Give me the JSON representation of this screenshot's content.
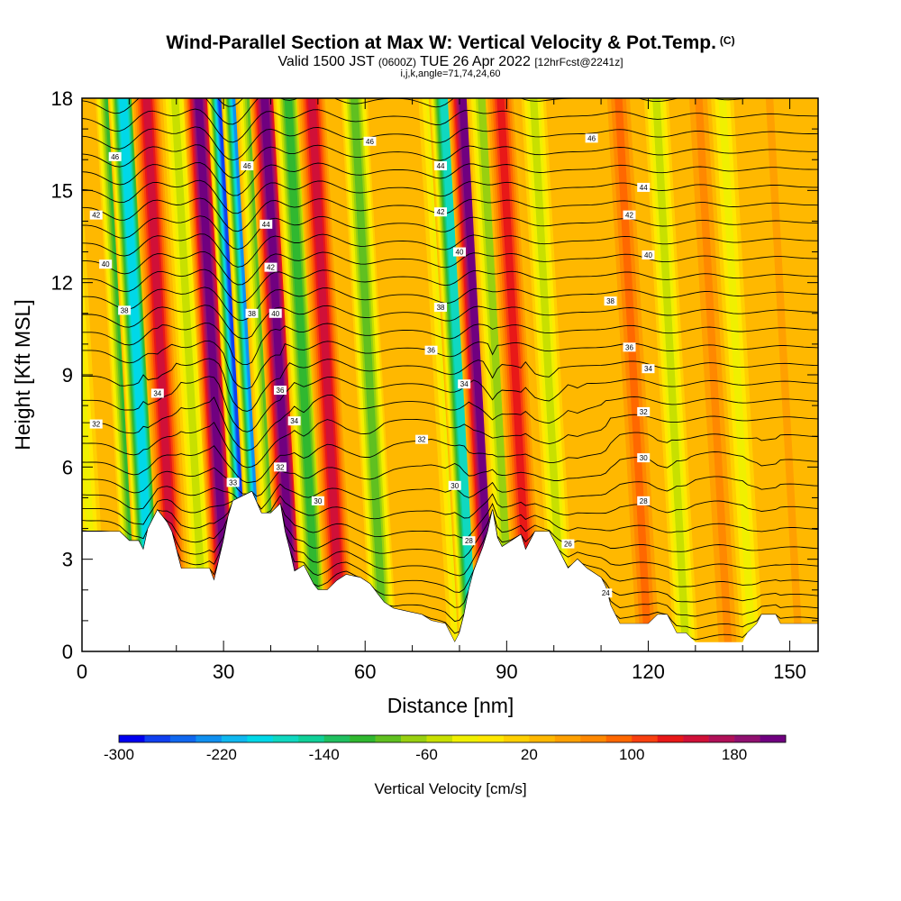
{
  "header": {
    "title": "Wind-Parallel Section at Max W: Vertical Velocity & Pot.Temp.",
    "copyright": "(C)",
    "valid_prefix": "Valid 1500 JST",
    "valid_utc": "(0600Z)",
    "valid_date": "TUE 26 Apr 2022",
    "forecast": "[12hrFcst@2241z]",
    "indices": "i,j,k,angle=71,74,24,60"
  },
  "chart_data": {
    "type": "heatmap",
    "xlabel": "Distance [nm]",
    "ylabel": "Height [Kft MSL]",
    "xlim": [
      0,
      156
    ],
    "ylim": [
      0,
      18
    ],
    "x_ticks": [
      0,
      30,
      60,
      90,
      120,
      150
    ],
    "y_ticks": [
      0,
      3,
      6,
      9,
      12,
      15,
      18
    ],
    "colorbar": {
      "label": "Vertical Velocity [cm/s]",
      "min": -300,
      "max": 220,
      "step": 20,
      "tick_labels": [
        -300,
        -220,
        -140,
        -60,
        20,
        100,
        180
      ],
      "colors": [
        "#0000f0",
        "#1040f0",
        "#1068f0",
        "#1090f0",
        "#10b8f0",
        "#00d8e8",
        "#10d8c0",
        "#10d098",
        "#20c060",
        "#30b830",
        "#60c020",
        "#98d010",
        "#c8e000",
        "#f0f000",
        "#ffe800",
        "#ffd000",
        "#ffb800",
        "#ffa000",
        "#ff8800",
        "#ff6800",
        "#f84010",
        "#e81818",
        "#d01038",
        "#b01058",
        "#901070",
        "#700080"
      ]
    },
    "vertical_velocity_bands": [
      {
        "x": 3,
        "w": -40
      },
      {
        "x": 12,
        "w": -120
      },
      {
        "x": 15,
        "w": -200
      },
      {
        "x": 20,
        "w": 140
      },
      {
        "x": 26,
        "w": -60
      },
      {
        "x": 31,
        "w": 200
      },
      {
        "x": 36,
        "w": -280
      },
      {
        "x": 39,
        "w": -240
      },
      {
        "x": 42,
        "w": -100
      },
      {
        "x": 45,
        "w": 200
      },
      {
        "x": 50,
        "w": -120
      },
      {
        "x": 55,
        "w": 140
      },
      {
        "x": 64,
        "w": -100
      },
      {
        "x": 80,
        "w": -40
      },
      {
        "x": 83,
        "w": -180
      },
      {
        "x": 87,
        "w": 200
      },
      {
        "x": 91,
        "w": -80
      },
      {
        "x": 95,
        "w": 120
      },
      {
        "x": 102,
        "w": -60
      },
      {
        "x": 120,
        "w": 80
      },
      {
        "x": 128,
        "w": -60
      },
      {
        "x": 137,
        "w": 60
      },
      {
        "x": 142,
        "w": -40
      },
      {
        "x": 152,
        "w": 40
      }
    ],
    "potential_temperature_contours": [
      {
        "label": "24",
        "x": 111,
        "y": 1.9
      },
      {
        "label": "26",
        "x": 103,
        "y": 3.5
      },
      {
        "label": "28",
        "x": 119,
        "y": 4.9
      },
      {
        "label": "28",
        "x": 82,
        "y": 3.6
      },
      {
        "label": "30",
        "x": 119,
        "y": 6.3
      },
      {
        "label": "30",
        "x": 79,
        "y": 5.4
      },
      {
        "label": "30",
        "x": 50,
        "y": 4.9
      },
      {
        "label": "32",
        "x": 119,
        "y": 7.8
      },
      {
        "label": "32",
        "x": 72,
        "y": 6.9
      },
      {
        "label": "32",
        "x": 3,
        "y": 7.4
      },
      {
        "label": "32",
        "x": 42,
        "y": 6.0
      },
      {
        "label": "33",
        "x": 32,
        "y": 5.5
      },
      {
        "label": "34",
        "x": 120,
        "y": 9.2
      },
      {
        "label": "34",
        "x": 81,
        "y": 8.7
      },
      {
        "label": "34",
        "x": 16,
        "y": 8.4
      },
      {
        "label": "34",
        "x": 45,
        "y": 7.5
      },
      {
        "label": "36",
        "x": 116,
        "y": 9.9
      },
      {
        "label": "36",
        "x": 74,
        "y": 9.8
      },
      {
        "label": "36",
        "x": 42,
        "y": 8.5
      },
      {
        "label": "38",
        "x": 112,
        "y": 11.4
      },
      {
        "label": "38",
        "x": 76,
        "y": 11.2
      },
      {
        "label": "38",
        "x": 9,
        "y": 11.1
      },
      {
        "label": "38",
        "x": 36,
        "y": 11.0
      },
      {
        "label": "40",
        "x": 120,
        "y": 12.9
      },
      {
        "label": "40",
        "x": 80,
        "y": 13.0
      },
      {
        "label": "40",
        "x": 5,
        "y": 12.6
      },
      {
        "label": "40",
        "x": 41,
        "y": 11.0
      },
      {
        "label": "42",
        "x": 116,
        "y": 14.2
      },
      {
        "label": "42",
        "x": 76,
        "y": 14.3
      },
      {
        "label": "42",
        "x": 3,
        "y": 14.2
      },
      {
        "label": "42",
        "x": 40,
        "y": 12.5
      },
      {
        "label": "44",
        "x": 119,
        "y": 15.1
      },
      {
        "label": "44",
        "x": 76,
        "y": 15.8
      },
      {
        "label": "44",
        "x": 39,
        "y": 13.9
      },
      {
        "label": "46",
        "x": 108,
        "y": 16.7
      },
      {
        "label": "46",
        "x": 61,
        "y": 16.6
      },
      {
        "label": "46",
        "x": 7,
        "y": 16.1
      },
      {
        "label": "46",
        "x": 35,
        "y": 15.8
      }
    ],
    "terrain_kft": [
      [
        0,
        3.9
      ],
      [
        8,
        3.9
      ],
      [
        10,
        3.6
      ],
      [
        12,
        3.6
      ],
      [
        13,
        3.3
      ],
      [
        14,
        4.0
      ],
      [
        16,
        4.6
      ],
      [
        18,
        4.2
      ],
      [
        19,
        3.9
      ],
      [
        20,
        3.3
      ],
      [
        21,
        2.7
      ],
      [
        27,
        2.7
      ],
      [
        28,
        2.3
      ],
      [
        30,
        3.6
      ],
      [
        31,
        4.4
      ],
      [
        32,
        4.9
      ],
      [
        36,
        5.2
      ],
      [
        38,
        4.5
      ],
      [
        40,
        4.5
      ],
      [
        42,
        4.8
      ],
      [
        43,
        3.9
      ],
      [
        44,
        3.3
      ],
      [
        45,
        2.6
      ],
      [
        47,
        2.8
      ],
      [
        48,
        2.5
      ],
      [
        49,
        2.2
      ],
      [
        50,
        2.0
      ],
      [
        52,
        2.0
      ],
      [
        54,
        2.3
      ],
      [
        56,
        2.5
      ],
      [
        59,
        2.4
      ],
      [
        60,
        2.3
      ],
      [
        61,
        2.2
      ],
      [
        62,
        2.0
      ],
      [
        63,
        1.8
      ],
      [
        64,
        1.6
      ],
      [
        66,
        1.4
      ],
      [
        69,
        1.3
      ],
      [
        72,
        1.2
      ],
      [
        74,
        1.0
      ],
      [
        77,
        0.9
      ],
      [
        78,
        0.6
      ],
      [
        79,
        0.3
      ],
      [
        80,
        0.6
      ],
      [
        81,
        1.2
      ],
      [
        82,
        2.0
      ],
      [
        83,
        2.6
      ],
      [
        85,
        3.4
      ],
      [
        86,
        3.9
      ],
      [
        87,
        4.6
      ],
      [
        88,
        3.7
      ],
      [
        89,
        3.4
      ],
      [
        91,
        3.6
      ],
      [
        93,
        3.8
      ],
      [
        94,
        3.3
      ],
      [
        96,
        3.9
      ],
      [
        99,
        3.9
      ],
      [
        100,
        3.6
      ],
      [
        101,
        3.3
      ],
      [
        102,
        3.0
      ],
      [
        103,
        2.7
      ],
      [
        105,
        3.0
      ],
      [
        107,
        2.7
      ],
      [
        110,
        2.4
      ],
      [
        111,
        2.1
      ],
      [
        112,
        1.5
      ],
      [
        113,
        1.2
      ],
      [
        114,
        0.9
      ],
      [
        120,
        0.9
      ],
      [
        122,
        1.2
      ],
      [
        124,
        1.2
      ],
      [
        125,
        0.9
      ],
      [
        126,
        0.6
      ],
      [
        128,
        0.6
      ],
      [
        130,
        0.3
      ],
      [
        140,
        0.3
      ],
      [
        141,
        0.6
      ],
      [
        143,
        0.9
      ],
      [
        144,
        1.2
      ],
      [
        147,
        1.2
      ],
      [
        148,
        0.9
      ],
      [
        156,
        0.9
      ]
    ]
  }
}
